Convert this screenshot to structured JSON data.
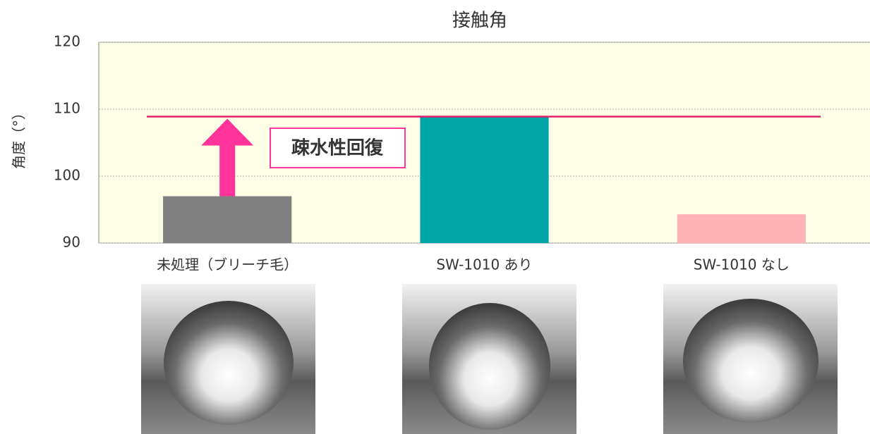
{
  "chart_data": {
    "type": "bar",
    "title": "接触角",
    "y_label": "角度（°）",
    "categories": [
      "未処理（ブリーチ毛）",
      "SW-1010 あり",
      "SW-1010 なし"
    ],
    "category_label_colors": [
      "#333333",
      "#00a5a8",
      "#333333"
    ],
    "values": [
      97,
      108.9,
      94.3
    ],
    "colors": [
      "#808080",
      "#00a5a8",
      "#ffb3b5"
    ],
    "ylim": [
      90,
      120
    ],
    "yticks": [
      90,
      100,
      110,
      120
    ],
    "grid": true,
    "plot_background": "#fefee6",
    "reference_line": {
      "value": 108.9,
      "color": "#e0206a"
    },
    "annotation": {
      "text": "疎水性回復",
      "color": "#ff3399"
    }
  }
}
